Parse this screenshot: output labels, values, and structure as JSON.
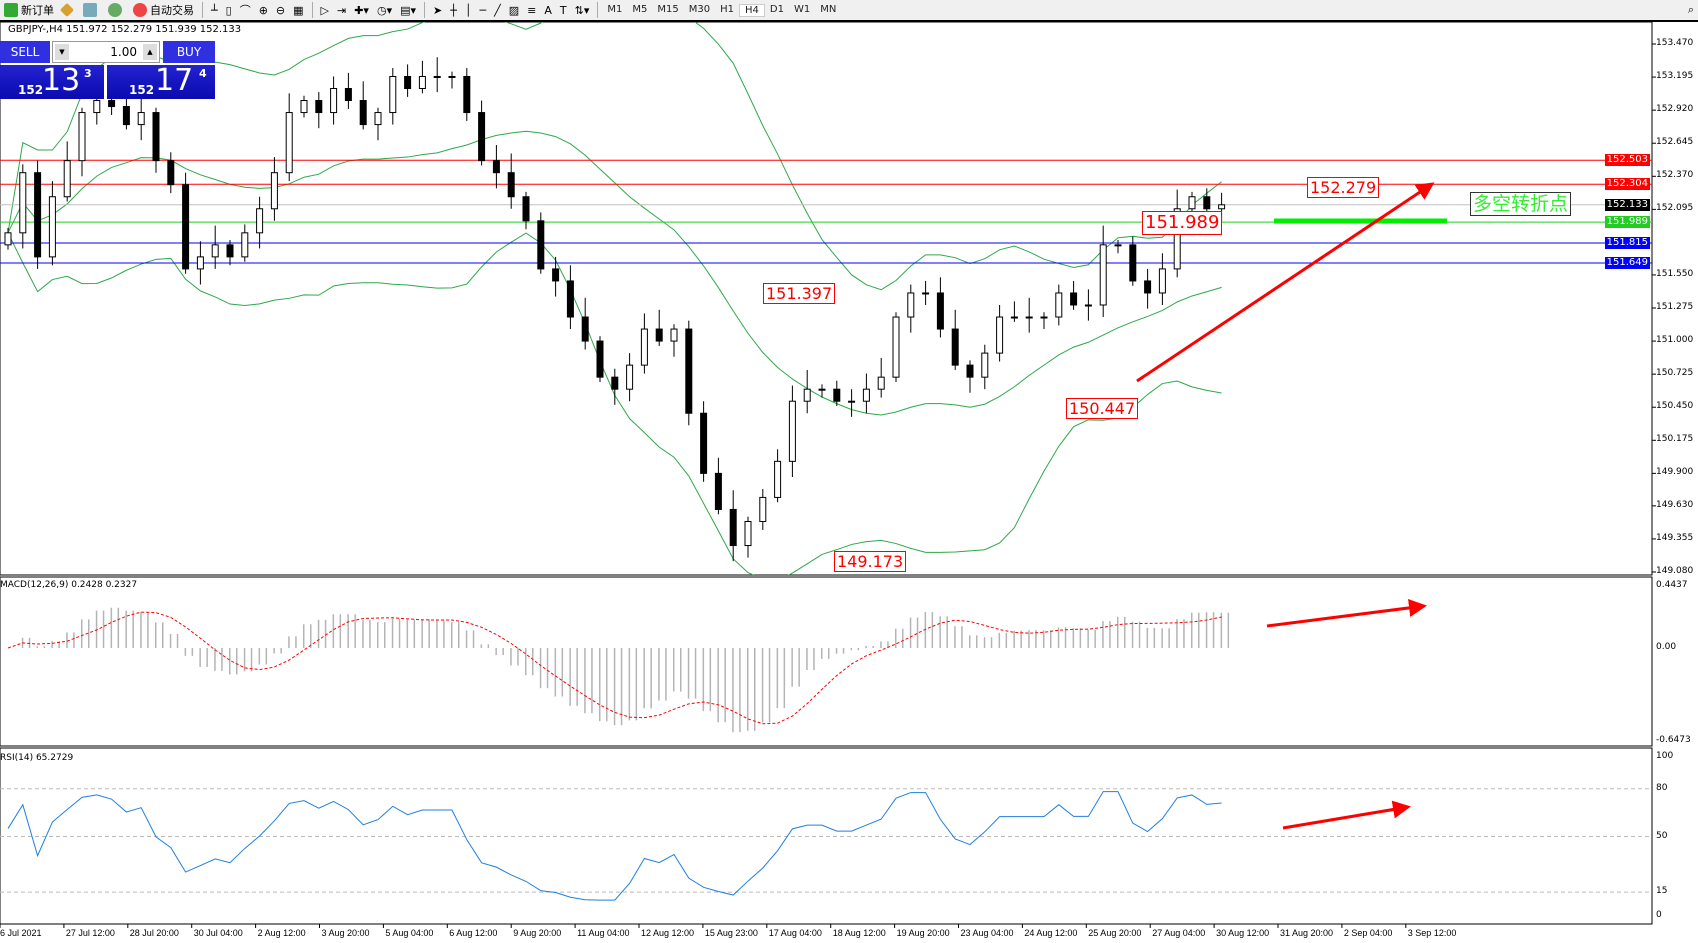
{
  "toolbar": {
    "new_order": "新订单",
    "auto_trading": "自动交易",
    "timeframes": [
      "M1",
      "M5",
      "M15",
      "M30",
      "H1",
      "H4",
      "D1",
      "W1",
      "MN"
    ],
    "active_timeframe": "H4",
    "drawing_letters": [
      "A",
      "T"
    ]
  },
  "header": {
    "symbol_info": "GBPJPY-,H4  151.972 152.279 151.939 152.133"
  },
  "one_click": {
    "sell_label": "SELL",
    "buy_label": "BUY",
    "lot": "1.00",
    "sell_prefix": "152",
    "sell_big": "13",
    "sell_sup": "3",
    "buy_prefix": "152",
    "buy_big": "17",
    "buy_sup": "4"
  },
  "chart_data": {
    "type": "candlestick",
    "symbol": "GBPJPY-",
    "timeframe": "H4",
    "price": {
      "ylim": [
        149.08,
        153.47
      ],
      "ticks": [
        "153.470",
        "153.195",
        "152.920",
        "152.645",
        "152.370",
        "152.095",
        "151.550",
        "151.275",
        "151.000",
        "150.725",
        "150.450",
        "150.175",
        "149.900",
        "149.630",
        "149.355",
        "149.080"
      ],
      "closes": [
        151.9,
        152.4,
        151.7,
        152.2,
        152.5,
        152.9,
        153.0,
        152.95,
        152.8,
        152.9,
        152.5,
        152.3,
        151.6,
        151.7,
        151.8,
        151.7,
        151.9,
        152.1,
        152.4,
        152.9,
        153.0,
        152.9,
        153.1,
        153.0,
        152.8,
        152.9,
        153.2,
        153.1,
        153.2,
        153.2,
        153.2,
        152.9,
        152.5,
        152.4,
        152.2,
        152.0,
        151.6,
        151.5,
        151.2,
        151.0,
        150.7,
        150.6,
        150.8,
        151.1,
        151.0,
        151.1,
        150.4,
        149.9,
        149.6,
        149.3,
        149.5,
        149.7,
        150.0,
        150.5,
        150.6,
        150.6,
        150.5,
        150.5,
        150.6,
        150.7,
        151.2,
        151.4,
        151.4,
        151.1,
        150.8,
        150.7,
        150.9,
        151.2,
        151.2,
        151.2,
        151.2,
        151.4,
        151.3,
        151.3,
        151.8,
        151.8,
        151.5,
        151.4,
        151.6,
        152.1,
        152.2,
        152.1,
        152.133
      ]
    },
    "levels": [
      {
        "value": "152.503",
        "color": "#ff0000"
      },
      {
        "value": "152.304",
        "color": "#ff0000"
      },
      {
        "value": "152.133",
        "color": "#000000",
        "line": "#c0c0c0"
      },
      {
        "value": "151.989",
        "color": "#22cc22"
      },
      {
        "value": "151.815",
        "color": "#0000ff"
      },
      {
        "value": "151.649",
        "color": "#0000ff"
      }
    ],
    "annotations": [
      "151.989",
      "152.279",
      "151.397",
      "150.447",
      "149.173"
    ],
    "turning_point_label": "多空转折点",
    "macd": {
      "title": "MACD(12,26,9) 0.2428 0.2327",
      "ylim": [
        "0.4437",
        "0.00",
        "-0.6473"
      ]
    },
    "rsi": {
      "title": "RSI(14) 65.2729",
      "ticks": [
        "100",
        "80",
        "50",
        "15",
        "0"
      ]
    },
    "x_ticks": [
      "6 Jul 2021",
      "27 Jul 12:00",
      "28 Jul 20:00",
      "30 Jul 04:00",
      "2 Aug 12:00",
      "3 Aug 20:00",
      "5 Aug 04:00",
      "6 Aug 12:00",
      "9 Aug 20:00",
      "11 Aug 04:00",
      "12 Aug 12:00",
      "15 Aug 23:00",
      "17 Aug 04:00",
      "18 Aug 12:00",
      "19 Aug 20:00",
      "23 Aug 04:00",
      "24 Aug 12:00",
      "25 Aug 20:00",
      "27 Aug 04:00",
      "30 Aug 12:00",
      "31 Aug 20:00",
      "2 Sep 04:00",
      "3 Sep 12:00"
    ],
    "colors": {
      "bands": "#2ea84a",
      "macd_signal": "#ff0000",
      "macd_hist": "#b4b4b4",
      "rsi": "#1e7fe0",
      "trend": "#ff0000",
      "pivot": "#00ee00"
    }
  }
}
